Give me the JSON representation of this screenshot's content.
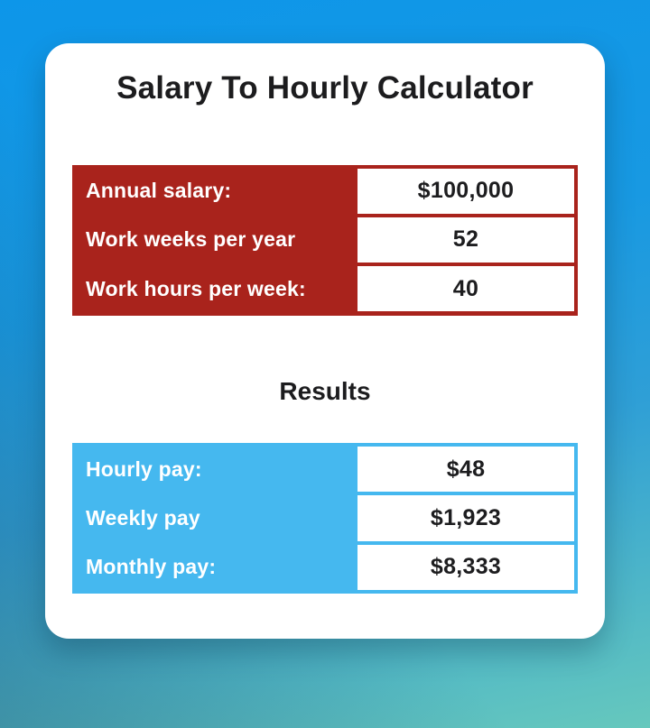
{
  "page": {
    "title": "Salary To Hourly Calculator"
  },
  "inputs": {
    "rows": [
      {
        "label": "Annual salary:",
        "value": "$100,000"
      },
      {
        "label": "Work weeks per year",
        "value": "52"
      },
      {
        "label": "Work hours per week:",
        "value": "40"
      }
    ]
  },
  "results": {
    "heading": "Results",
    "rows": [
      {
        "label": "Hourly pay:",
        "value": "$48"
      },
      {
        "label": "Weekly pay",
        "value": "$1,923"
      },
      {
        "label": "Monthly pay:",
        "value": "$8,333"
      }
    ]
  },
  "colors": {
    "bg_top": "#0d96e9",
    "bg_bottom": "#66c8bd",
    "input_accent": "#a9231c",
    "result_accent": "#45b8ef",
    "card": "#ffffff",
    "title_color": "#1c1c1e",
    "value_color": "#1d1d1f"
  }
}
